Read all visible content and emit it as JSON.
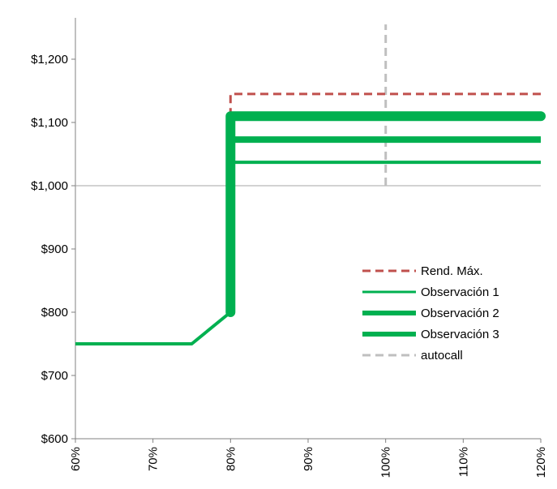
{
  "chart_data": {
    "type": "line",
    "title": "",
    "xlabel": "",
    "ylabel": "",
    "xlim": [
      60,
      120
    ],
    "ylim": [
      600,
      1250
    ],
    "x_ticks": [
      60,
      70,
      80,
      90,
      100,
      110,
      120
    ],
    "x_tick_labels": [
      "60%",
      "70%",
      "80%",
      "90%",
      "100%",
      "110%",
      "120%"
    ],
    "y_ticks": [
      600,
      700,
      800,
      900,
      1000,
      1100,
      1200
    ],
    "y_tick_labels": [
      "$600",
      "$700",
      "$800",
      "$900",
      "$1,000",
      "$1,100",
      "$1,200"
    ],
    "reference_line": {
      "y": 1000,
      "color": "#a6a6a6"
    },
    "legend_position": "right",
    "series": [
      {
        "name": "Rend. Máx.",
        "color": "#c0504d",
        "dash": "dashed",
        "points": [
          [
            80,
            1110
          ],
          [
            80,
            1145
          ],
          [
            120,
            1145
          ]
        ]
      },
      {
        "name": "Observación 1",
        "color": "#00b050",
        "dash": "solid",
        "weight": "thin",
        "points": [
          [
            60,
            750
          ],
          [
            75,
            750
          ],
          [
            80,
            800
          ],
          [
            80,
            1037
          ],
          [
            120,
            1037
          ]
        ]
      },
      {
        "name": "Observación 2",
        "color": "#00b050",
        "dash": "solid",
        "weight": "medium",
        "points": [
          [
            80,
            800
          ],
          [
            80,
            1073
          ],
          [
            120,
            1073
          ]
        ]
      },
      {
        "name": "Observación 3",
        "color": "#00b050",
        "dash": "solid",
        "weight": "thick",
        "points": [
          [
            80,
            800
          ],
          [
            80,
            1110
          ],
          [
            120,
            1110
          ]
        ]
      },
      {
        "name": "autocall",
        "color": "#bfbfbf",
        "dash": "dashed",
        "points": [
          [
            100,
            1000
          ],
          [
            100,
            1255
          ]
        ]
      }
    ]
  }
}
